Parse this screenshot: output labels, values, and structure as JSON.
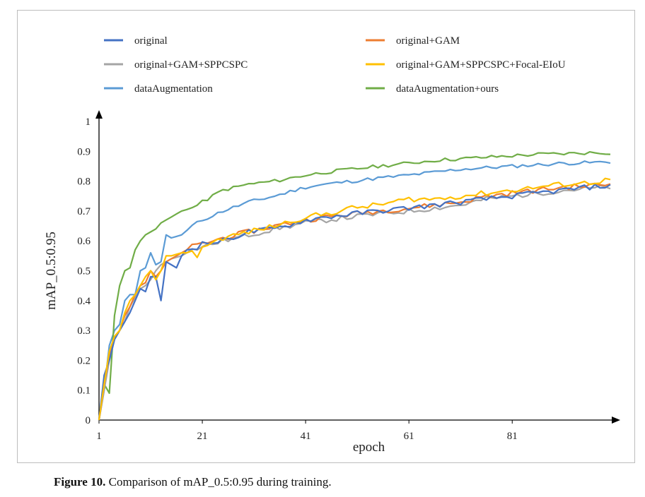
{
  "chart_data": {
    "type": "line",
    "xlabel": "epoch",
    "ylabel": "mAP_0.5:0.95",
    "xlim": [
      1,
      100
    ],
    "ylim": [
      0,
      1
    ],
    "x_ticks": [
      1,
      21,
      41,
      61,
      81
    ],
    "y_ticks": [
      0,
      0.1,
      0.2,
      0.3,
      0.4,
      0.5,
      0.6,
      0.7,
      0.8,
      0.9,
      1
    ],
    "y_tick_labels": [
      "0",
      "0.1",
      "0.2",
      "0.3",
      "0.4",
      "0.5",
      "0.6",
      "0.7",
      "0.8",
      "0.9",
      "1"
    ],
    "grid": false,
    "legend_position": "top",
    "series": [
      {
        "name": "original",
        "color": "#4472c4",
        "anchors": [
          [
            1,
            0
          ],
          [
            2,
            0.15
          ],
          [
            3,
            0.2
          ],
          [
            4,
            0.27
          ],
          [
            5,
            0.3
          ],
          [
            6,
            0.33
          ],
          [
            7,
            0.36
          ],
          [
            8,
            0.4
          ],
          [
            9,
            0.44
          ],
          [
            10,
            0.43
          ],
          [
            11,
            0.48
          ],
          [
            12,
            0.48
          ],
          [
            13,
            0.4
          ],
          [
            14,
            0.53
          ],
          [
            15,
            0.52
          ],
          [
            16,
            0.51
          ],
          [
            17,
            0.55
          ],
          [
            18,
            0.57
          ],
          [
            19,
            0.58
          ],
          [
            20,
            0.58
          ],
          [
            21,
            0.59
          ],
          [
            25,
            0.6
          ],
          [
            30,
            0.63
          ],
          [
            35,
            0.64
          ],
          [
            41,
            0.67
          ],
          [
            45,
            0.68
          ],
          [
            50,
            0.69
          ],
          [
            55,
            0.7
          ],
          [
            61,
            0.71
          ],
          [
            66,
            0.72
          ],
          [
            71,
            0.73
          ],
          [
            76,
            0.74
          ],
          [
            81,
            0.75
          ],
          [
            86,
            0.76
          ],
          [
            91,
            0.77
          ],
          [
            96,
            0.78
          ],
          [
            100,
            0.785
          ]
        ]
      },
      {
        "name": "original+GAM",
        "color": "#ed7d31",
        "anchors": [
          [
            1,
            0
          ],
          [
            2,
            0.12
          ],
          [
            3,
            0.22
          ],
          [
            4,
            0.28
          ],
          [
            5,
            0.3
          ],
          [
            6,
            0.35
          ],
          [
            7,
            0.38
          ],
          [
            8,
            0.42
          ],
          [
            9,
            0.45
          ],
          [
            10,
            0.46
          ],
          [
            11,
            0.5
          ],
          [
            12,
            0.48
          ],
          [
            13,
            0.5
          ],
          [
            14,
            0.53
          ],
          [
            15,
            0.54
          ],
          [
            17,
            0.56
          ],
          [
            19,
            0.58
          ],
          [
            21,
            0.59
          ],
          [
            25,
            0.61
          ],
          [
            30,
            0.63
          ],
          [
            35,
            0.65
          ],
          [
            41,
            0.67
          ],
          [
            45,
            0.68
          ],
          [
            50,
            0.69
          ],
          [
            55,
            0.7
          ],
          [
            61,
            0.71
          ],
          [
            66,
            0.72
          ],
          [
            71,
            0.73
          ],
          [
            76,
            0.75
          ],
          [
            81,
            0.76
          ],
          [
            86,
            0.77
          ],
          [
            91,
            0.78
          ],
          [
            96,
            0.785
          ],
          [
            100,
            0.79
          ]
        ]
      },
      {
        "name": "original+GAM+SPPCSPC",
        "color": "#a5a5a5",
        "anchors": [
          [
            1,
            0
          ],
          [
            2,
            0.1
          ],
          [
            3,
            0.2
          ],
          [
            4,
            0.27
          ],
          [
            5,
            0.3
          ],
          [
            6,
            0.33
          ],
          [
            7,
            0.38
          ],
          [
            8,
            0.41
          ],
          [
            9,
            0.44
          ],
          [
            10,
            0.45
          ],
          [
            11,
            0.47
          ],
          [
            12,
            0.5
          ],
          [
            13,
            0.52
          ],
          [
            14,
            0.53
          ],
          [
            15,
            0.54
          ],
          [
            17,
            0.55
          ],
          [
            19,
            0.57
          ],
          [
            21,
            0.58
          ],
          [
            25,
            0.6
          ],
          [
            30,
            0.62
          ],
          [
            35,
            0.64
          ],
          [
            41,
            0.66
          ],
          [
            45,
            0.67
          ],
          [
            50,
            0.68
          ],
          [
            55,
            0.69
          ],
          [
            61,
            0.7
          ],
          [
            66,
            0.71
          ],
          [
            71,
            0.72
          ],
          [
            76,
            0.74
          ],
          [
            81,
            0.75
          ],
          [
            86,
            0.76
          ],
          [
            91,
            0.77
          ],
          [
            96,
            0.775
          ],
          [
            100,
            0.78
          ]
        ]
      },
      {
        "name": "original+GAM+SPPCSPC+Focal-EIoU",
        "color": "#ffc000",
        "anchors": [
          [
            1,
            0
          ],
          [
            2,
            0.12
          ],
          [
            3,
            0.23
          ],
          [
            4,
            0.28
          ],
          [
            5,
            0.3
          ],
          [
            6,
            0.36
          ],
          [
            7,
            0.4
          ],
          [
            8,
            0.42
          ],
          [
            9,
            0.45
          ],
          [
            10,
            0.48
          ],
          [
            11,
            0.5
          ],
          [
            12,
            0.47
          ],
          [
            13,
            0.5
          ],
          [
            14,
            0.55
          ],
          [
            15,
            0.55
          ],
          [
            17,
            0.56
          ],
          [
            19,
            0.56
          ],
          [
            20,
            0.55
          ],
          [
            21,
            0.58
          ],
          [
            25,
            0.61
          ],
          [
            30,
            0.63
          ],
          [
            35,
            0.65
          ],
          [
            41,
            0.68
          ],
          [
            45,
            0.69
          ],
          [
            50,
            0.71
          ],
          [
            55,
            0.72
          ],
          [
            61,
            0.74
          ],
          [
            66,
            0.74
          ],
          [
            71,
            0.75
          ],
          [
            76,
            0.76
          ],
          [
            81,
            0.77
          ],
          [
            86,
            0.78
          ],
          [
            91,
            0.79
          ],
          [
            96,
            0.795
          ],
          [
            100,
            0.805
          ]
        ]
      },
      {
        "name": "dataAugmentation",
        "color": "#5b9bd5",
        "anchors": [
          [
            1,
            0
          ],
          [
            2,
            0.1
          ],
          [
            3,
            0.25
          ],
          [
            4,
            0.3
          ],
          [
            5,
            0.32
          ],
          [
            6,
            0.4
          ],
          [
            7,
            0.42
          ],
          [
            8,
            0.42
          ],
          [
            9,
            0.5
          ],
          [
            10,
            0.51
          ],
          [
            11,
            0.56
          ],
          [
            12,
            0.52
          ],
          [
            13,
            0.53
          ],
          [
            14,
            0.62
          ],
          [
            15,
            0.61
          ],
          [
            17,
            0.62
          ],
          [
            19,
            0.65
          ],
          [
            21,
            0.67
          ],
          [
            25,
            0.7
          ],
          [
            30,
            0.73
          ],
          [
            35,
            0.75
          ],
          [
            41,
            0.78
          ],
          [
            45,
            0.79
          ],
          [
            50,
            0.8
          ],
          [
            55,
            0.81
          ],
          [
            61,
            0.82
          ],
          [
            66,
            0.83
          ],
          [
            71,
            0.84
          ],
          [
            76,
            0.845
          ],
          [
            81,
            0.85
          ],
          [
            86,
            0.855
          ],
          [
            91,
            0.86
          ],
          [
            96,
            0.862
          ],
          [
            100,
            0.865
          ]
        ]
      },
      {
        "name": "dataAugmentation+ours",
        "color": "#70ad47",
        "anchors": [
          [
            1,
            0
          ],
          [
            2,
            0.12
          ],
          [
            3,
            0.09
          ],
          [
            4,
            0.35
          ],
          [
            5,
            0.45
          ],
          [
            6,
            0.5
          ],
          [
            7,
            0.51
          ],
          [
            8,
            0.57
          ],
          [
            9,
            0.6
          ],
          [
            10,
            0.62
          ],
          [
            11,
            0.63
          ],
          [
            12,
            0.64
          ],
          [
            13,
            0.66
          ],
          [
            15,
            0.68
          ],
          [
            17,
            0.7
          ],
          [
            19,
            0.71
          ],
          [
            21,
            0.73
          ],
          [
            25,
            0.77
          ],
          [
            30,
            0.79
          ],
          [
            35,
            0.8
          ],
          [
            41,
            0.82
          ],
          [
            45,
            0.83
          ],
          [
            50,
            0.84
          ],
          [
            55,
            0.85
          ],
          [
            61,
            0.86
          ],
          [
            66,
            0.87
          ],
          [
            71,
            0.875
          ],
          [
            76,
            0.88
          ],
          [
            81,
            0.885
          ],
          [
            86,
            0.89
          ],
          [
            91,
            0.892
          ],
          [
            96,
            0.895
          ],
          [
            100,
            0.895
          ]
        ]
      }
    ]
  },
  "caption": {
    "label": "Figure 10.",
    "text": " Comparison of mAP_0.5:0.95 during training."
  }
}
